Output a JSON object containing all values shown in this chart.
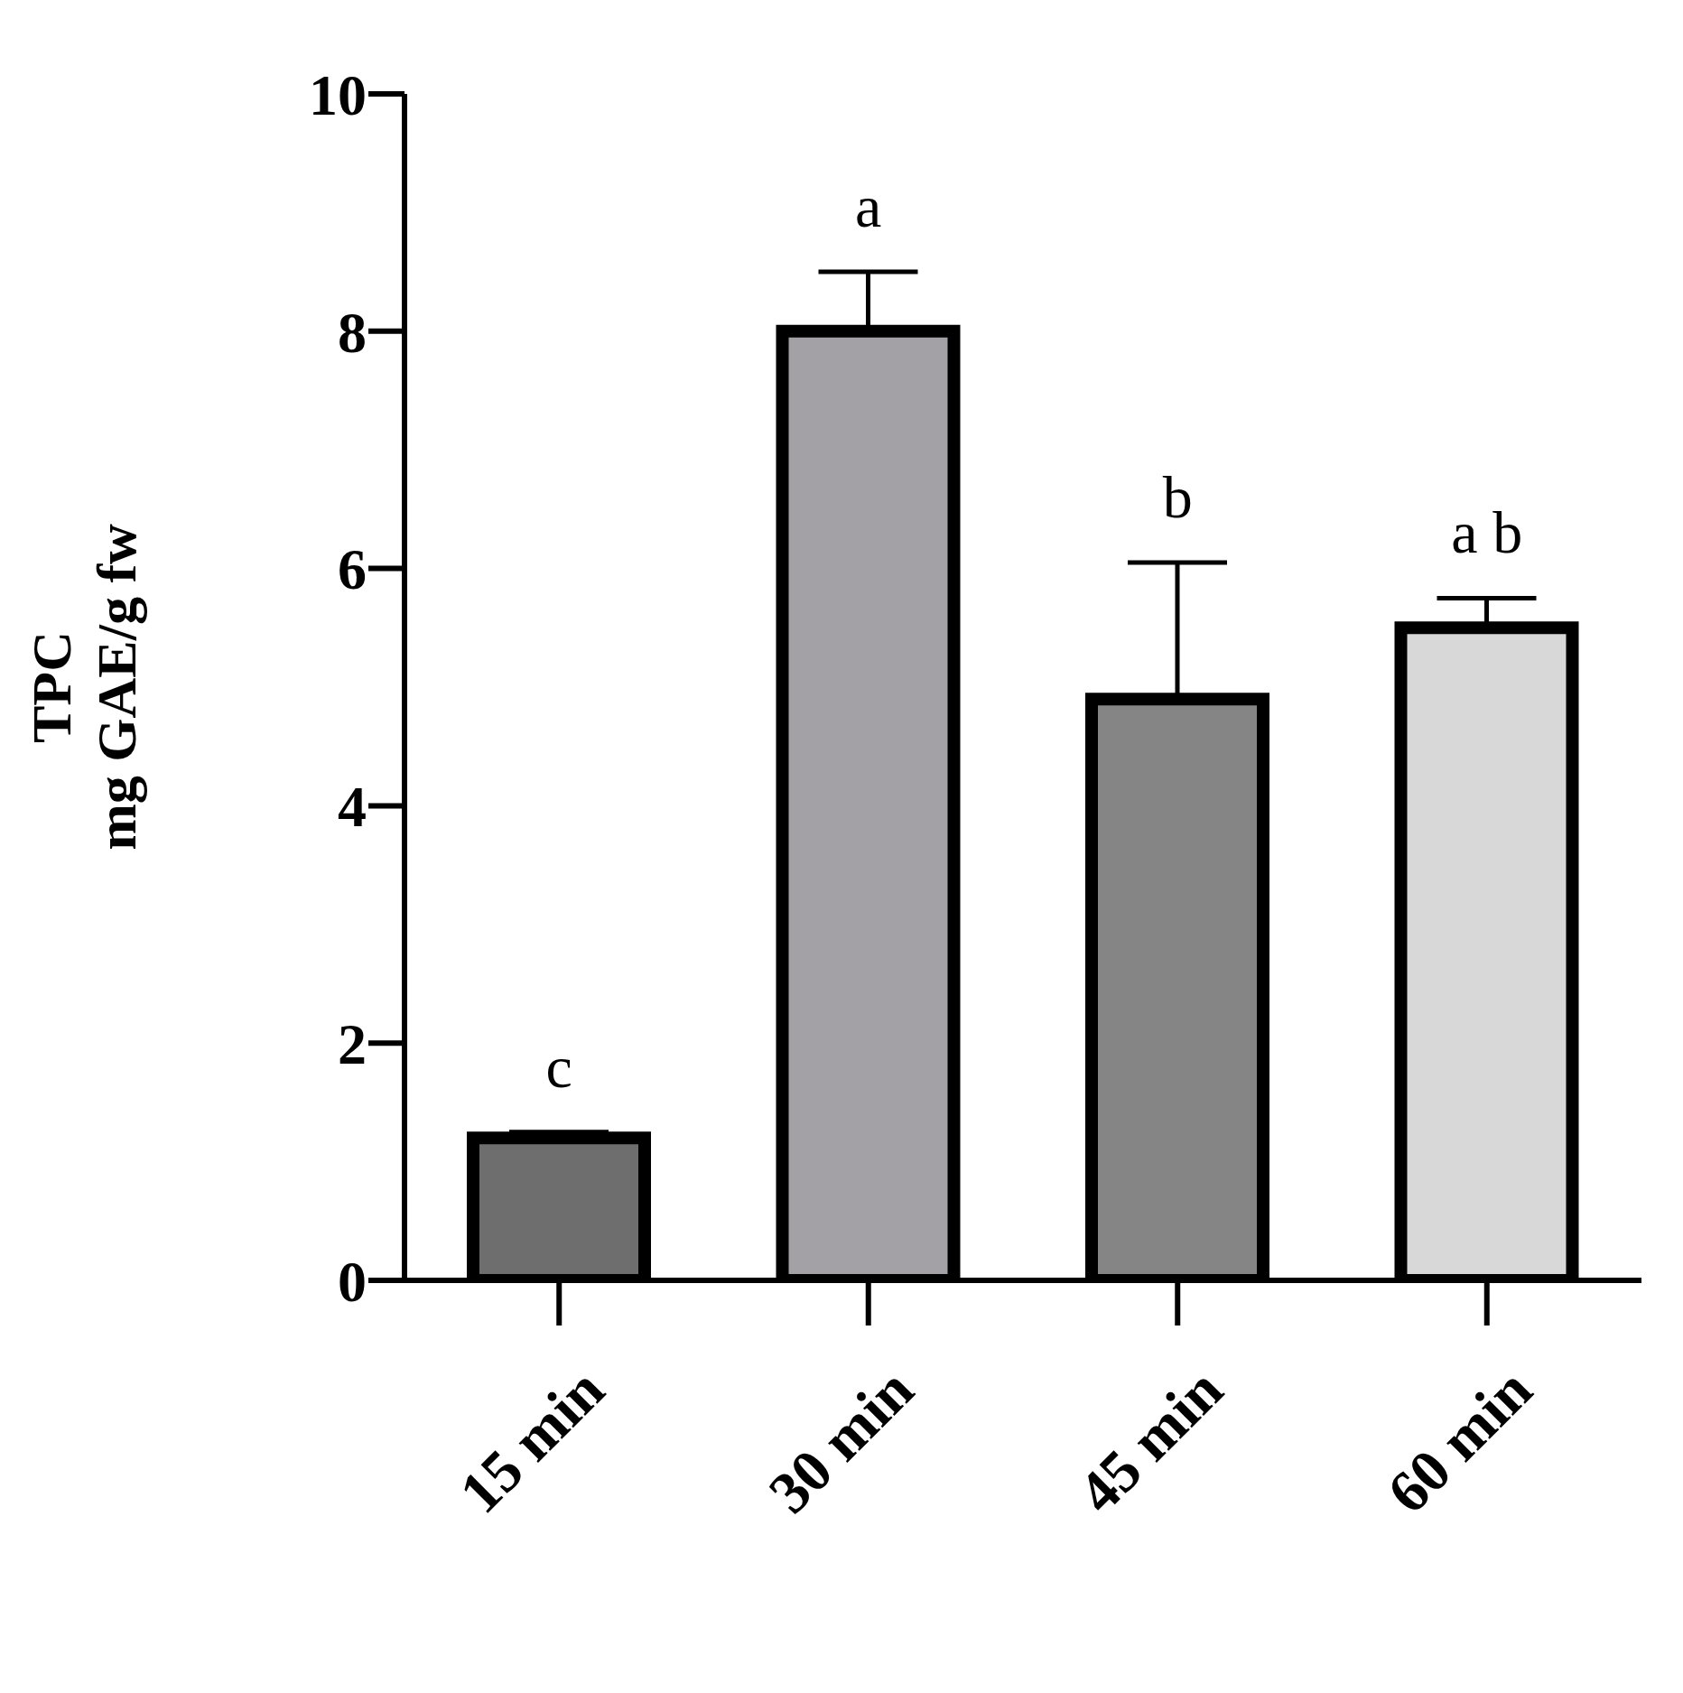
{
  "chart_data": {
    "type": "bar",
    "ylabel": "TPC\nmg GAE/g fw",
    "categories": [
      "15 min",
      "30 min",
      "45 min",
      "60 min"
    ],
    "values": [
      1.2,
      8.0,
      4.9,
      5.5
    ],
    "errors": [
      [
        1.2,
        1.25
      ],
      [
        8.0,
        8.5
      ],
      [
        4.9,
        6.05
      ],
      [
        5.5,
        5.75
      ]
    ],
    "colors": [
      "#6e6e6e",
      "#a3a1a6",
      "#858585",
      "#d8d8d8"
    ],
    "ylim": [
      0,
      10
    ],
    "yticks": [
      0,
      2,
      4,
      6,
      8,
      10
    ],
    "grid": false,
    "legend": false,
    "annotations": [
      "c",
      "a",
      "b",
      "a b"
    ]
  }
}
